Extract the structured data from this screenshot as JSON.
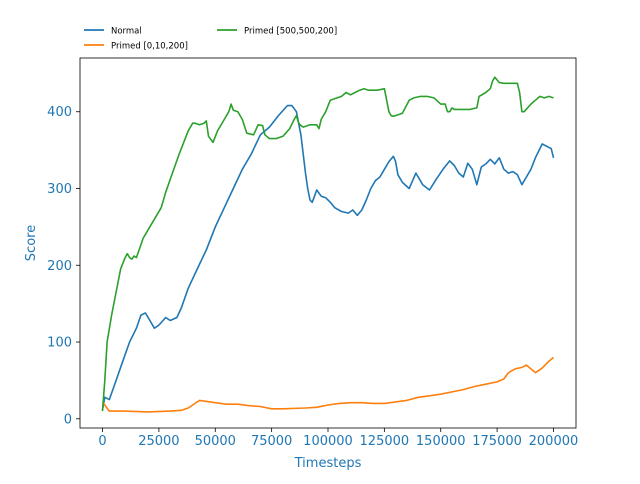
{
  "chart_data": {
    "type": "line",
    "title": "",
    "xlabel": "Timesteps",
    "ylabel": "Score",
    "xlim": [
      -10000,
      210000
    ],
    "ylim": [
      -12,
      470
    ],
    "x_ticks": [
      0,
      25000,
      50000,
      75000,
      100000,
      125000,
      150000,
      175000,
      200000
    ],
    "x_tick_labels": [
      "0",
      "25000",
      "50000",
      "75000",
      "100000",
      "125000",
      "150000",
      "175000",
      "200000"
    ],
    "y_ticks": [
      0,
      100,
      200,
      300,
      400
    ],
    "y_tick_labels": [
      "0",
      "100",
      "200",
      "300",
      "400"
    ],
    "grid": false,
    "legend_position": "top-left, outside plot",
    "axis_label_color": "#1f77b4",
    "series": [
      {
        "name": "Normal",
        "color": "#1f77b4",
        "x": [
          0,
          500,
          1000,
          3000,
          6000,
          9000,
          12000,
          15000,
          17000,
          19000,
          21000,
          23000,
          25000,
          28000,
          30000,
          33000,
          35000,
          38000,
          42000,
          46000,
          50000,
          54000,
          58000,
          62000,
          66000,
          70000,
          74000,
          78000,
          82000,
          84000,
          86000,
          88000,
          90000,
          91000,
          92000,
          93000,
          94000,
          95000,
          97000,
          99000,
          101000,
          103000,
          106000,
          109000,
          111000,
          113000,
          115000,
          117000,
          119000,
          121000,
          123000,
          125000,
          127000,
          129000,
          130000,
          131000,
          133000,
          136000,
          139000,
          142000,
          145000,
          148000,
          151000,
          154000,
          156000,
          158000,
          160000,
          162000,
          164000,
          166000,
          168000,
          170000,
          172000,
          174000,
          176000,
          178000,
          180000,
          182000,
          184000,
          186000,
          188000,
          190000,
          192000,
          195000,
          197000,
          199000,
          200000
        ],
        "y": [
          12,
          20,
          28,
          25,
          50,
          75,
          100,
          118,
          135,
          138,
          128,
          118,
          122,
          132,
          128,
          132,
          145,
          170,
          195,
          220,
          250,
          275,
          300,
          325,
          345,
          370,
          380,
          395,
          408,
          408,
          400,
          370,
          320,
          300,
          285,
          282,
          290,
          298,
          290,
          288,
          282,
          275,
          270,
          268,
          272,
          265,
          272,
          285,
          300,
          310,
          315,
          325,
          335,
          342,
          335,
          318,
          308,
          300,
          320,
          305,
          298,
          312,
          325,
          336,
          330,
          320,
          315,
          333,
          325,
          305,
          328,
          332,
          338,
          332,
          340,
          325,
          320,
          322,
          318,
          305,
          315,
          325,
          340,
          358,
          355,
          352,
          340
        ]
      },
      {
        "name": "Primed [0,10,200]",
        "color": "#ff7f0e",
        "x": [
          0,
          1000,
          3000,
          10000,
          20000,
          30000,
          35000,
          38000,
          40000,
          42000,
          43000,
          45000,
          50000,
          55000,
          60000,
          65000,
          70000,
          75000,
          80000,
          90000,
          95000,
          100000,
          105000,
          110000,
          115000,
          120000,
          125000,
          130000,
          135000,
          140000,
          145000,
          150000,
          155000,
          160000,
          165000,
          170000,
          175000,
          178000,
          180000,
          183000,
          186000,
          188000,
          190000,
          192000,
          195000,
          198000,
          200000
        ],
        "y": [
          22,
          18,
          10,
          10,
          9,
          10,
          11,
          14,
          18,
          22,
          24,
          23,
          21,
          19,
          19,
          17,
          16,
          13,
          13,
          14,
          15,
          18,
          20,
          21,
          21,
          20,
          20,
          22,
          24,
          28,
          30,
          32,
          35,
          38,
          42,
          45,
          48,
          52,
          60,
          65,
          67,
          70,
          65,
          60,
          66,
          75,
          80
        ]
      },
      {
        "name": "Primed [500,500,200]",
        "color": "#2ca02c",
        "x": [
          0,
          1000,
          2000,
          4000,
          6000,
          8000,
          10000,
          11000,
          12000,
          13000,
          14000,
          15000,
          16000,
          18000,
          20000,
          23000,
          26000,
          28000,
          31000,
          34000,
          36000,
          38000,
          40000,
          41000,
          43000,
          45000,
          46000,
          47000,
          49000,
          51000,
          54000,
          56000,
          57000,
          58000,
          60000,
          62000,
          64000,
          67000,
          69000,
          71000,
          72000,
          74000,
          77000,
          80000,
          83000,
          85000,
          86000,
          87000,
          88000,
          89000,
          92000,
          95000,
          96000,
          97000,
          99000,
          101000,
          104000,
          106000,
          108000,
          110000,
          112000,
          114000,
          116000,
          118000,
          120000,
          122000,
          125000,
          127000,
          128000,
          129000,
          130000,
          133000,
          136000,
          138000,
          141000,
          144000,
          147000,
          150000,
          152000,
          153000,
          154000,
          155000,
          156000,
          159000,
          163000,
          166000,
          167000,
          170000,
          172000,
          173000,
          174000,
          176000,
          178000,
          181000,
          184000,
          185000,
          186000,
          187000,
          190000,
          192000,
          194000,
          196000,
          198000,
          200000
        ],
        "y": [
          10,
          50,
          100,
          135,
          165,
          195,
          210,
          215,
          210,
          208,
          212,
          210,
          218,
          235,
          245,
          260,
          275,
          295,
          320,
          345,
          360,
          375,
          385,
          385,
          383,
          385,
          388,
          368,
          360,
          375,
          390,
          400,
          410,
          402,
          400,
          390,
          372,
          370,
          383,
          382,
          370,
          365,
          365,
          368,
          378,
          390,
          395,
          385,
          382,
          380,
          383,
          383,
          378,
          390,
          400,
          415,
          418,
          420,
          425,
          422,
          425,
          428,
          430,
          428,
          428,
          428,
          430,
          400,
          395,
          394,
          395,
          398,
          415,
          418,
          420,
          420,
          418,
          410,
          410,
          400,
          400,
          405,
          403,
          403,
          403,
          405,
          420,
          425,
          430,
          440,
          445,
          438,
          437,
          437,
          437,
          425,
          400,
          400,
          410,
          415,
          420,
          418,
          420,
          418
        ]
      }
    ]
  }
}
